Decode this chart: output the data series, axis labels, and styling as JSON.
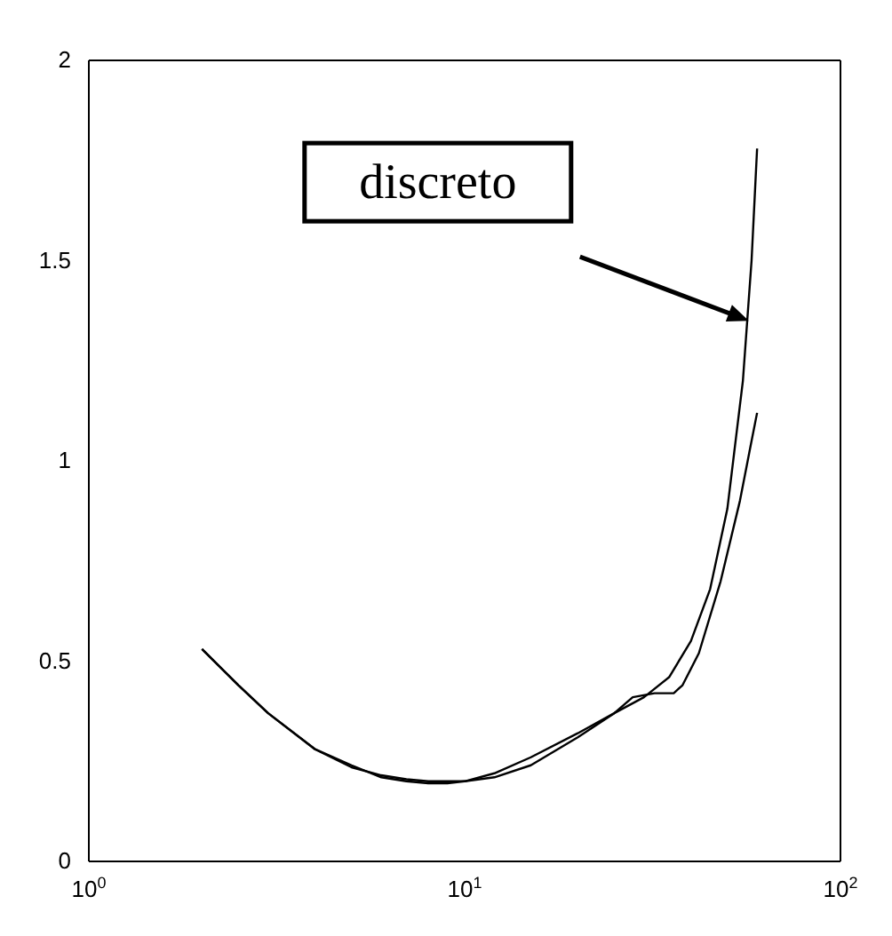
{
  "chart_data": {
    "type": "line",
    "log": "x",
    "xlim": [
      1,
      100
    ],
    "xticks": [
      {
        "value": 1,
        "label": "10$^{0}$"
      },
      {
        "value": 10,
        "label": "10$^{1}$"
      },
      {
        "value": 100,
        "label": "10$^{2}$"
      }
    ],
    "ylim": [
      0,
      2
    ],
    "yticks": [
      0,
      0.5,
      1,
      1.5,
      2
    ],
    "grid": false,
    "marker": "none",
    "line_style": "solid",
    "series": [
      {
        "color": "#000000",
        "x": [
          2,
          2.5,
          3,
          4,
          5,
          6,
          7,
          8,
          9,
          10,
          12,
          15,
          20,
          25,
          30,
          35,
          40,
          45,
          50,
          55,
          58,
          60
        ],
        "values": [
          0.53,
          0.44,
          0.37,
          0.28,
          0.235,
          0.215,
          0.205,
          0.2,
          0.2,
          0.2,
          0.22,
          0.26,
          0.32,
          0.37,
          0.41,
          0.46,
          0.55,
          0.68,
          0.88,
          1.2,
          1.5,
          1.78
        ]
      },
      {
        "color": "#000000",
        "x": [
          2,
          2.5,
          3,
          4,
          5,
          6,
          7,
          8,
          9,
          10,
          12,
          15,
          20,
          25,
          28,
          32,
          36,
          38,
          42,
          48,
          54,
          58,
          60
        ],
        "values": [
          0.53,
          0.44,
          0.37,
          0.28,
          0.24,
          0.21,
          0.2,
          0.195,
          0.195,
          0.2,
          0.21,
          0.24,
          0.31,
          0.37,
          0.41,
          0.42,
          0.42,
          0.44,
          0.52,
          0.7,
          0.9,
          1.05,
          1.12
        ]
      }
    ],
    "annotations": [
      "discreto"
    ]
  }
}
